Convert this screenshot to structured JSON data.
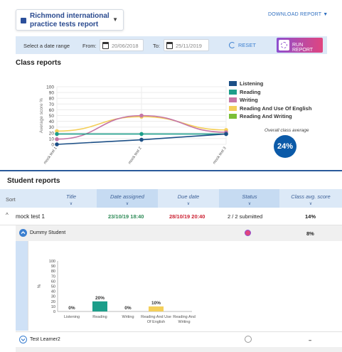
{
  "header": {
    "report_title": "Richmond international practice tests report",
    "download_label": "DOWNLOAD REPORT"
  },
  "date_range": {
    "prompt": "Select a date range",
    "from_label": "From:",
    "from_value": "20/06/2018",
    "to_label": "To:",
    "to_value": "25/11/2019",
    "reset_label": "RESET",
    "run_label": "RUN REPORT"
  },
  "class_reports": {
    "title": "Class reports",
    "avg_label": "Overall class average",
    "avg_value": "24%",
    "chart_data": {
      "type": "line",
      "ylabel": "Average score %",
      "ylim": [
        0,
        100
      ],
      "yticks": [
        "0",
        "10",
        "20",
        "30",
        "40",
        "50",
        "60",
        "70",
        "80",
        "90",
        "100"
      ],
      "categories": [
        "mock test 1",
        "mock test 2",
        "mock test 3"
      ],
      "legend_position": "right",
      "series": [
        {
          "name": "Listening",
          "color": "#1c4f86",
          "values": [
            0,
            8,
            18
          ]
        },
        {
          "name": "Reading",
          "color": "#1c9e8a",
          "values": [
            18,
            18,
            18
          ]
        },
        {
          "name": "Writing",
          "color": "#c576a6",
          "values": [
            9,
            50,
            21
          ]
        },
        {
          "name": "Reading And Use Of English",
          "color": "#f4cf5a",
          "values": [
            23,
            48,
            25
          ]
        },
        {
          "name": "Reading And Writing",
          "color": "#7bbf37",
          "values": [
            null,
            null,
            null
          ]
        }
      ]
    }
  },
  "student_reports": {
    "title": "Student reports",
    "columns": {
      "sort": "Sort",
      "title": "Title",
      "date_assigned": "Date assigned",
      "due_date": "Due date",
      "status": "Status",
      "avg_score": "Class avg. score"
    },
    "test_row": {
      "name": "mock test 1",
      "date_assigned": "23/10/19 18:40",
      "due_date": "28/10/19 20:40",
      "status": "2 / 2 submitted",
      "score": "14%"
    },
    "students": [
      {
        "name": "Dummy Student",
        "score": "8%"
      },
      {
        "name": "Test Learner2",
        "score": "–"
      }
    ],
    "student_chart": {
      "type": "bar",
      "ylabel": "%",
      "ylim": [
        0,
        100
      ],
      "yticks": [
        "0",
        "10",
        "20",
        "30",
        "40",
        "50",
        "60",
        "70",
        "80",
        "90",
        "100"
      ],
      "categories": [
        "Listening",
        "Reading",
        "Writing",
        "Reading And Use Of English",
        "Reading And Writing"
      ],
      "values": [
        0,
        20,
        0,
        10,
        null
      ],
      "labels": [
        "0%",
        "20%",
        "0%",
        "10%",
        ""
      ],
      "colors": [
        "#1c4f86",
        "#1c9e8a",
        "#c576a6",
        "#f4cf5a",
        "#7bbf37"
      ]
    }
  },
  "colors": {
    "accent": "#2a5a9a",
    "assigned_green": "#2e8b57",
    "due_red": "#cc2233",
    "header_bg": "#dce9f7"
  }
}
